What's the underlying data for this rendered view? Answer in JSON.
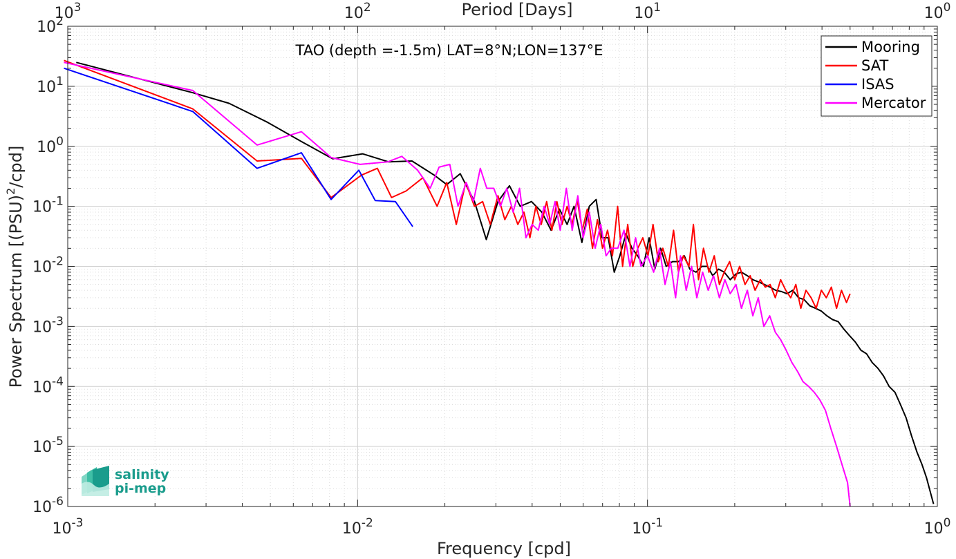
{
  "chart_data": {
    "type": "line",
    "title": "TAO (depth =-1.5m) LAT=8°N;LON=137°E",
    "xlabel": "Frequency [cpd]",
    "ylabel": "Power Spectrum [(PSU)",
    "ylabel_sup": "2",
    "ylabel_tail": "/cpd]",
    "x2label": "Period [Days]",
    "xscale": "log",
    "yscale": "log",
    "xlim": [
      0.001,
      1
    ],
    "ylim": [
      1e-06,
      100
    ],
    "grid": true,
    "legend_position": "top-right",
    "xticks": [
      {
        "base": "10",
        "exp": "-3"
      },
      {
        "base": "10",
        "exp": "-2"
      },
      {
        "base": "10",
        "exp": "-1"
      },
      {
        "base": "10",
        "exp": "0"
      }
    ],
    "x2ticks": [
      {
        "base": "10",
        "exp": "3"
      },
      {
        "base": "10",
        "exp": "2"
      },
      {
        "base": "10",
        "exp": "1"
      },
      {
        "base": "10",
        "exp": "0"
      }
    ],
    "yticks": [
      {
        "base": "10",
        "exp": "2"
      },
      {
        "base": "10",
        "exp": "1"
      },
      {
        "base": "10",
        "exp": "0"
      },
      {
        "base": "10",
        "exp": "-1"
      },
      {
        "base": "10",
        "exp": "-2"
      },
      {
        "base": "10",
        "exp": "-3"
      },
      {
        "base": "10",
        "exp": "-4"
      },
      {
        "base": "10",
        "exp": "-5"
      },
      {
        "base": "10",
        "exp": "-6"
      }
    ],
    "series": [
      {
        "name": "Mooring",
        "color": "#000000",
        "x": [
          0.00107,
          0.0027,
          0.0036,
          0.0049,
          0.0064,
          0.0082,
          0.0104,
          0.0128,
          0.0154,
          0.0184,
          0.0203,
          0.0226,
          0.0253,
          0.0278,
          0.0305,
          0.0334,
          0.0364,
          0.0398,
          0.0432,
          0.0465,
          0.0497,
          0.0528,
          0.0558,
          0.0594,
          0.063,
          0.0665,
          0.0698,
          0.0732,
          0.0768,
          0.0803,
          0.0843,
          0.0884,
          0.0925,
          0.0969,
          0.1013,
          0.106,
          0.111,
          0.116,
          0.122,
          0.128,
          0.134,
          0.14,
          0.147,
          0.154,
          0.161,
          0.168,
          0.176,
          0.184,
          0.193,
          0.202,
          0.211,
          0.221,
          0.231,
          0.242,
          0.253,
          0.265,
          0.277,
          0.29,
          0.303,
          0.317,
          0.332,
          0.347,
          0.363,
          0.38,
          0.398,
          0.416,
          0.435,
          0.455,
          0.476,
          0.498,
          0.521,
          0.545,
          0.57,
          0.596,
          0.624,
          0.652,
          0.682,
          0.714,
          0.746,
          0.78,
          0.815,
          0.851,
          0.885,
          0.918,
          0.944,
          0.97
        ],
        "y": [
          25,
          7.8,
          5.2,
          2.5,
          1.2,
          0.62,
          0.75,
          0.55,
          0.57,
          0.33,
          0.23,
          0.35,
          0.12,
          0.028,
          0.12,
          0.22,
          0.1,
          0.12,
          0.08,
          0.04,
          0.09,
          0.05,
          0.1,
          0.025,
          0.1,
          0.13,
          0.03,
          0.03,
          0.008,
          0.015,
          0.035,
          0.02,
          0.015,
          0.01,
          0.03,
          0.009,
          0.02,
          0.01,
          0.012,
          0.012,
          0.015,
          0.009,
          0.008,
          0.01,
          0.01,
          0.007,
          0.009,
          0.008,
          0.006,
          0.0075,
          0.008,
          0.007,
          0.006,
          0.0055,
          0.005,
          0.0045,
          0.004,
          0.0038,
          0.0035,
          0.004,
          0.003,
          0.0028,
          0.0022,
          0.002,
          0.0018,
          0.0015,
          0.0013,
          0.0012,
          0.0009,
          0.0007,
          0.00055,
          0.0004,
          0.00035,
          0.00025,
          0.0002,
          0.00015,
          0.0001,
          8e-05,
          5e-05,
          3e-05,
          1.5e-05,
          8e-06,
          5e-06,
          3e-06,
          1.8e-06,
          1.1e-06
        ]
      },
      {
        "name": "SAT",
        "color": "#ff0000",
        "x": [
          0.00097,
          0.0027,
          0.0045,
          0.0064,
          0.0081,
          0.0103,
          0.0117,
          0.0131,
          0.0147,
          0.0168,
          0.0188,
          0.0203,
          0.0219,
          0.0236,
          0.0253,
          0.027,
          0.0287,
          0.0305,
          0.0322,
          0.0339,
          0.0357,
          0.0375,
          0.0393,
          0.0412,
          0.043,
          0.0449,
          0.0468,
          0.0487,
          0.0507,
          0.0528,
          0.055,
          0.0572,
          0.0596,
          0.062,
          0.0646,
          0.0672,
          0.07,
          0.0728,
          0.0757,
          0.0789,
          0.0821,
          0.0855,
          0.089,
          0.0926,
          0.0964,
          0.1004,
          0.1045,
          0.109,
          0.113,
          0.118,
          0.123,
          0.128,
          0.133,
          0.139,
          0.144,
          0.15,
          0.156,
          0.163,
          0.17,
          0.177,
          0.184,
          0.192,
          0.2,
          0.208,
          0.217,
          0.226,
          0.235,
          0.245,
          0.255,
          0.265,
          0.276,
          0.288,
          0.3,
          0.312,
          0.325,
          0.338,
          0.352,
          0.367,
          0.382,
          0.398,
          0.414,
          0.431,
          0.449,
          0.467,
          0.486,
          0.5
        ],
        "y": [
          27,
          4.2,
          0.57,
          0.63,
          0.14,
          0.33,
          0.43,
          0.14,
          0.18,
          0.3,
          0.1,
          0.25,
          0.05,
          0.25,
          0.1,
          0.12,
          0.05,
          0.15,
          0.06,
          0.1,
          0.05,
          0.08,
          0.03,
          0.1,
          0.05,
          0.12,
          0.04,
          0.12,
          0.05,
          0.1,
          0.05,
          0.13,
          0.04,
          0.09,
          0.02,
          0.06,
          0.02,
          0.04,
          0.015,
          0.1,
          0.01,
          0.05,
          0.01,
          0.02,
          0.03,
          0.015,
          0.05,
          0.012,
          0.02,
          0.01,
          0.04,
          0.008,
          0.015,
          0.01,
          0.05,
          0.006,
          0.02,
          0.008,
          0.015,
          0.005,
          0.008,
          0.012,
          0.006,
          0.01,
          0.005,
          0.007,
          0.004,
          0.006,
          0.0045,
          0.005,
          0.003,
          0.006,
          0.004,
          0.003,
          0.005,
          0.002,
          0.004,
          0.003,
          0.002,
          0.004,
          0.003,
          0.0045,
          0.002,
          0.004,
          0.0025,
          0.0035
        ]
      },
      {
        "name": "ISAS",
        "color": "#0000ff",
        "x": [
          0.00097,
          0.0027,
          0.0045,
          0.0064,
          0.0081,
          0.0101,
          0.0115,
          0.0135,
          0.0155
        ],
        "y": [
          20,
          3.8,
          0.43,
          0.78,
          0.13,
          0.4,
          0.125,
          0.12,
          0.046
        ]
      },
      {
        "name": "Mercator",
        "color": "#ff00ff",
        "x": [
          0.00097,
          0.0027,
          0.0045,
          0.0064,
          0.0081,
          0.0102,
          0.0127,
          0.0142,
          0.0161,
          0.0178,
          0.0191,
          0.0208,
          0.0222,
          0.0237,
          0.0251,
          0.0265,
          0.0279,
          0.0295,
          0.0311,
          0.0327,
          0.0344,
          0.0362,
          0.0381,
          0.04,
          0.042,
          0.044,
          0.046,
          0.048,
          0.05,
          0.0525,
          0.055,
          0.0575,
          0.06,
          0.063,
          0.066,
          0.069,
          0.072,
          0.075,
          0.079,
          0.083,
          0.087,
          0.091,
          0.095,
          0.1,
          0.105,
          0.11,
          0.115,
          0.12,
          0.125,
          0.13,
          0.136,
          0.142,
          0.148,
          0.155,
          0.162,
          0.169,
          0.177,
          0.185,
          0.193,
          0.202,
          0.211,
          0.221,
          0.231,
          0.241,
          0.252,
          0.264,
          0.276,
          0.288,
          0.301,
          0.315,
          0.329,
          0.344,
          0.36,
          0.376,
          0.393,
          0.411,
          0.429,
          0.449,
          0.469,
          0.49,
          0.5
        ],
        "y": [
          25,
          8.5,
          1.05,
          1.75,
          0.65,
          0.5,
          0.55,
          0.68,
          0.4,
          0.2,
          0.45,
          0.5,
          0.1,
          0.25,
          0.12,
          0.43,
          0.2,
          0.2,
          0.1,
          0.2,
          0.08,
          0.2,
          0.03,
          0.05,
          0.04,
          0.1,
          0.05,
          0.12,
          0.04,
          0.2,
          0.04,
          0.15,
          0.03,
          0.08,
          0.02,
          0.05,
          0.015,
          0.02,
          0.02,
          0.04,
          0.01,
          0.03,
          0.01,
          0.015,
          0.008,
          0.02,
          0.005,
          0.012,
          0.003,
          0.015,
          0.004,
          0.01,
          0.003,
          0.008,
          0.004,
          0.007,
          0.003,
          0.006,
          0.0035,
          0.005,
          0.002,
          0.004,
          0.0015,
          0.003,
          0.001,
          0.0015,
          0.0008,
          0.0006,
          0.0004,
          0.00025,
          0.00018,
          0.00012,
          0.0001,
          8e-05,
          6e-05,
          4e-05,
          2e-05,
          1e-05,
          5e-06,
          2.5e-06,
          1e-06
        ]
      }
    ]
  },
  "logo": {
    "line1": "salinity",
    "line2": "pi-mep"
  }
}
